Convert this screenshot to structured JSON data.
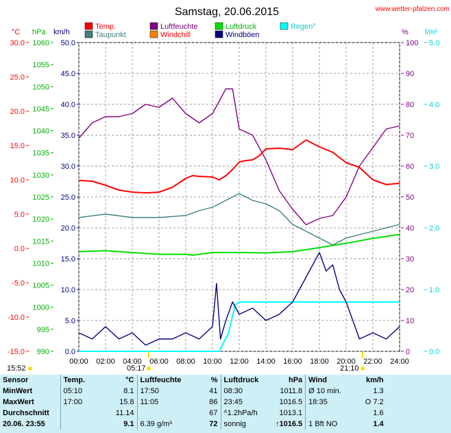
{
  "header": {
    "title": "Samstag, 20.06.2015",
    "site": "www.wetter-pfalzen.com"
  },
  "legend": [
    {
      "label": "Temp.",
      "color": "#ff0000"
    },
    {
      "label": "Taupunkt",
      "color": "#3f7f7f"
    },
    {
      "label": "Luftfeuchte",
      "color": "#800080"
    },
    {
      "label": "Windchill",
      "color": "#ff8000"
    },
    {
      "label": "Luftdruck",
      "color": "#00e000"
    },
    {
      "label": "Windböen",
      "color": "#00007f"
    },
    {
      "label": "Regen°",
      "color": "#00ffff"
    }
  ],
  "axis_units": {
    "celsius": "°C",
    "hpa": "hPa",
    "kmh": "km/h",
    "percent": "%",
    "rain": "l/m²"
  },
  "axis_ticks": {
    "celsius": [
      "30.0",
      "25.0",
      "20.0",
      "15.0",
      "10.0",
      "5.0",
      "0.0",
      "-5.0",
      "-10.0",
      "-15.0"
    ],
    "hpa": [
      "1060",
      "1055",
      "1050",
      "1045",
      "1040",
      "1035",
      "1030",
      "1025",
      "1020",
      "1015",
      "1010",
      "1005",
      "1000",
      "995",
      "990"
    ],
    "kmh": [
      "50.0",
      "45.0",
      "40.0",
      "35.0",
      "30.0",
      "25.0",
      "20.0",
      "15.0",
      "10.0",
      "5.0",
      "0.0"
    ],
    "percent": [
      "100",
      "90",
      "80",
      "70",
      "60",
      "50",
      "40",
      "30",
      "20",
      "10",
      "0"
    ],
    "rain": [
      "5.0",
      "4.0",
      "3.0",
      "2.0",
      "1.0",
      "0.0"
    ],
    "time": [
      "00:00",
      "02:00",
      "04:00",
      "06:00",
      "08:00",
      "10:00",
      "12:00",
      "14:00",
      "16:00",
      "18:00",
      "20:00",
      "22:00",
      "24:00"
    ]
  },
  "sun_markers": {
    "left": "15:52",
    "sunrise": "05:17",
    "sunset": "21:10"
  },
  "chart_data": {
    "type": "line",
    "title": "Samstag, 20.06.2015",
    "x_unit": "hours",
    "xlim": [
      0,
      24
    ],
    "series": [
      {
        "name": "Temp.",
        "axis": "celsius",
        "ylim": [
          -15,
          30
        ],
        "x": [
          0,
          1,
          2,
          3,
          4,
          5,
          5.2,
          6,
          7,
          8,
          8.5,
          9,
          10,
          10.5,
          11,
          11.5,
          12,
          12.5,
          13,
          13.5,
          14,
          15,
          16,
          17,
          18,
          19,
          20,
          21,
          22,
          23,
          24
        ],
        "y": [
          9.9,
          9.8,
          9.2,
          8.5,
          8.2,
          8.1,
          8.1,
          8.2,
          8.9,
          10.2,
          10.6,
          10.5,
          10.4,
          10.0,
          10.6,
          11.5,
          12.6,
          12.8,
          12.9,
          13.5,
          14.5,
          14.6,
          14.4,
          15.8,
          14.8,
          14.0,
          12.5,
          11.8,
          10.0,
          9.3,
          9.5
        ]
      },
      {
        "name": "Taupunkt",
        "axis": "celsius",
        "ylim": [
          -15,
          30
        ],
        "x": [
          0,
          2,
          4,
          6,
          8,
          9,
          10,
          11,
          12,
          13,
          14,
          15,
          16,
          17,
          18,
          19,
          20,
          21,
          22,
          23,
          24
        ],
        "y": [
          4.5,
          5.0,
          4.5,
          4.5,
          4.8,
          5.5,
          6.0,
          7.0,
          8.0,
          7.0,
          6.5,
          5.5,
          3.5,
          2.5,
          1.5,
          0.5,
          1.5,
          2.0,
          2.5,
          3.0,
          3.5
        ]
      },
      {
        "name": "Luftfeuchte",
        "axis": "percent",
        "ylim": [
          0,
          100
        ],
        "x": [
          0,
          1,
          2,
          3,
          4,
          5,
          6,
          7,
          8,
          9,
          10,
          10.5,
          11,
          11.5,
          12,
          13,
          14,
          15,
          16,
          17,
          18,
          19,
          20,
          21,
          22,
          23,
          24
        ],
        "y": [
          69,
          74,
          76,
          76,
          77,
          80,
          79,
          82,
          77,
          74,
          77,
          81,
          85,
          85,
          72,
          70,
          62,
          52,
          46,
          41,
          43,
          44,
          50,
          60,
          66,
          72,
          73
        ]
      },
      {
        "name": "Luftdruck",
        "axis": "hpa",
        "ylim": [
          990,
          1060
        ],
        "x": [
          0,
          2,
          4,
          6,
          8,
          8.5,
          10,
          12,
          14,
          16,
          18,
          20,
          22,
          24
        ],
        "y": [
          1012.6,
          1012.8,
          1012.4,
          1012.0,
          1012.0,
          1011.8,
          1012.4,
          1012.4,
          1012.3,
          1012.6,
          1013.5,
          1014.5,
          1015.6,
          1016.5
        ]
      },
      {
        "name": "Windböen",
        "axis": "kmh",
        "ylim": [
          0,
          50
        ],
        "x": [
          0,
          1,
          2,
          3,
          4,
          5,
          6,
          7,
          8,
          9,
          10,
          10.3,
          10.6,
          11,
          11.5,
          12,
          13,
          14,
          15,
          16,
          17,
          18,
          18.5,
          19,
          19.5,
          20,
          21,
          22,
          23,
          24
        ],
        "y": [
          3,
          2,
          4,
          2,
          3,
          1,
          2,
          2,
          3,
          2,
          4,
          11,
          2,
          5,
          8,
          6,
          7,
          5,
          6,
          8,
          12,
          16,
          13,
          14,
          10,
          8,
          2,
          3,
          2,
          4
        ]
      },
      {
        "name": "Regen°",
        "axis": "rain",
        "ylim": [
          0,
          5
        ],
        "x": [
          0,
          10.5,
          11.2,
          11.7,
          12,
          13,
          14,
          15,
          16,
          17,
          18,
          19,
          20,
          21,
          22,
          23,
          24
        ],
        "y": [
          0,
          0,
          0.3,
          0.75,
          0.8,
          0.8,
          0.8,
          0.8,
          0.8,
          0.8,
          0.8,
          0.8,
          0.8,
          0.8,
          0.8,
          0.8,
          0.8
        ]
      }
    ]
  },
  "summary": {
    "headers": {
      "sensor": "Sensor",
      "temp": "Temp.",
      "temp_unit": "°C",
      "humidity": "Luftfeuchte",
      "humidity_unit": "%",
      "pressure": "Luftdruck",
      "pressure_unit": "hPa",
      "wind": "Wind",
      "wind_unit": "km/h"
    },
    "rows": [
      {
        "label": "MinWert",
        "temp_time": "05:10",
        "temp": "8.1",
        "hum_time": "17:50",
        "hum": "41",
        "pres_time": "08:30",
        "pres": "1011.8",
        "wind_label": "Ø 10 min.",
        "wind": "1.3"
      },
      {
        "label": "MaxWert",
        "temp_time": "17:00",
        "temp": "15.8",
        "hum_time": "11:05",
        "hum": "86",
        "pres_time": "23:45",
        "pres": "1016.5",
        "wind_label": "18:35",
        "wind": "O 7.2"
      },
      {
        "label": "Durchschnitt",
        "temp_time": "",
        "temp": "11.14",
        "hum_time": "",
        "hum": "67",
        "pres_time": "^1.2hPa/h",
        "pres": "1013.1",
        "wind_label": "",
        "wind": "1.6"
      },
      {
        "label": "20.06. 23:55",
        "temp_time": "",
        "temp": "9.1",
        "hum_time": "6.39 g/m³",
        "hum": "72",
        "pres_time": "sonnig",
        "pres": "↑1016.5",
        "wind_label": "1 Bft NO",
        "wind": "1.4"
      }
    ]
  }
}
